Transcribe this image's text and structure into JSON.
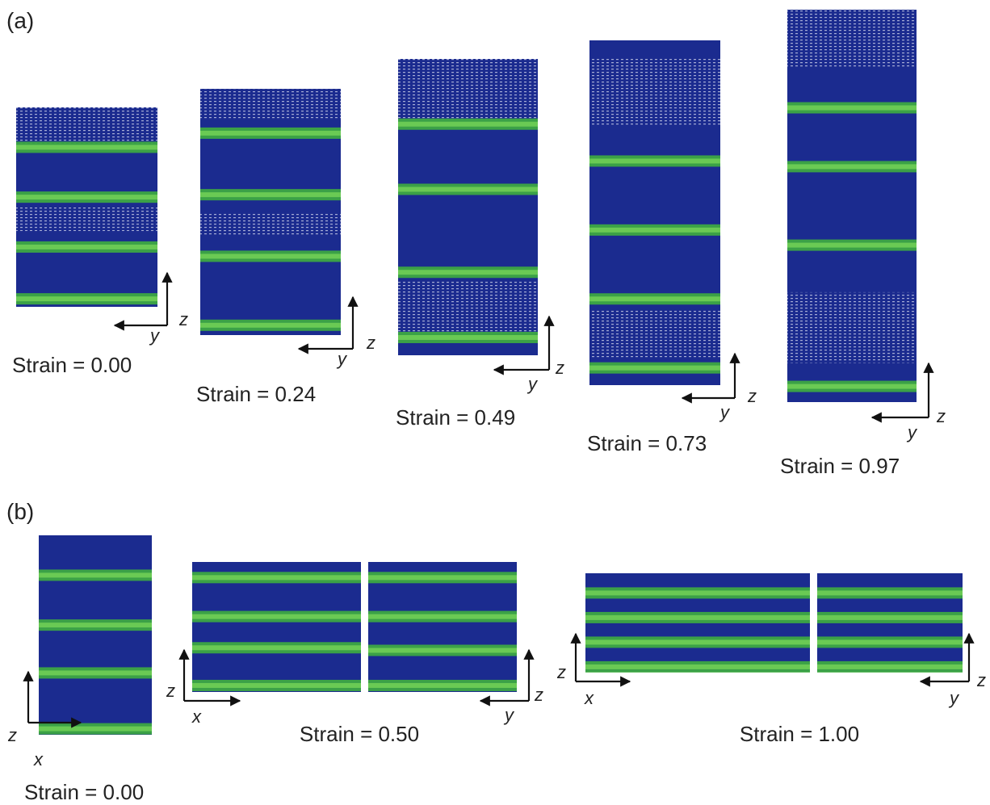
{
  "panel_a": {
    "label": "(a)",
    "frames": [
      {
        "caption": "Strain = 0.00",
        "axes": {
          "horizontal": "y",
          "vertical": "z"
        }
      },
      {
        "caption": "Strain = 0.24",
        "axes": {
          "horizontal": "y",
          "vertical": "z"
        }
      },
      {
        "caption": "Strain = 0.49",
        "axes": {
          "horizontal": "y",
          "vertical": "z"
        }
      },
      {
        "caption": "Strain = 0.73",
        "axes": {
          "horizontal": "y",
          "vertical": "z"
        }
      },
      {
        "caption": "Strain = 0.97",
        "axes": {
          "horizontal": "y",
          "vertical": "z"
        }
      }
    ]
  },
  "panel_b": {
    "label": "(b)",
    "frames": [
      {
        "caption": "Strain = 0.00",
        "views": [
          {
            "horizontal": "x",
            "vertical": "z"
          }
        ]
      },
      {
        "caption": "Strain = 0.50",
        "views": [
          {
            "horizontal": "x",
            "vertical": "z"
          },
          {
            "horizontal": "y",
            "vertical": "z"
          }
        ]
      },
      {
        "caption": "Strain = 1.00",
        "views": [
          {
            "horizontal": "x",
            "vertical": "z"
          },
          {
            "horizontal": "y",
            "vertical": "z"
          }
        ]
      }
    ]
  }
}
